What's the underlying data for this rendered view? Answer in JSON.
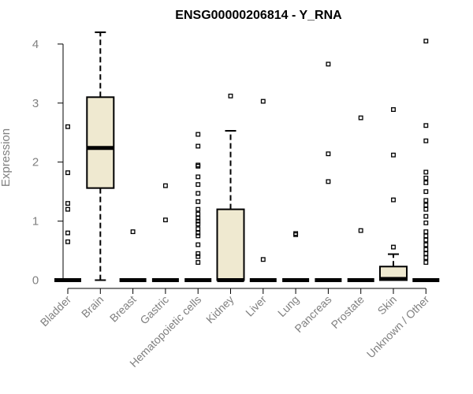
{
  "colors": {
    "box_fill": "#efe9d0",
    "stroke": "#000000",
    "axis_text": "#808080",
    "title": "#000000"
  },
  "chart_data": {
    "type": "box",
    "title": "ENSG00000206814 - Y_RNA",
    "xlabel": "",
    "ylabel": "Expression",
    "ylim": [
      0,
      4.3
    ],
    "yticks": [
      0,
      1,
      2,
      3,
      4
    ],
    "grid": false,
    "categories": [
      "Bladder",
      "Brain",
      "Breast",
      "Gastric",
      "Hematopoietic cells",
      "Kidney",
      "Liver",
      "Lung",
      "Pancreas",
      "Prostate",
      "Skin",
      "Unknown / Other"
    ],
    "boxes": [
      {
        "category": "Bladder",
        "q1": 0,
        "median": 0,
        "q3": 0,
        "whisker_low": 0,
        "whisker_high": 0,
        "outliers": [
          2.6,
          1.82,
          1.3,
          1.2,
          0.8,
          0.65
        ]
      },
      {
        "category": "Brain",
        "q1": 1.56,
        "median": 2.24,
        "q3": 3.1,
        "whisker_low": 0,
        "whisker_high": 4.2,
        "outliers": []
      },
      {
        "category": "Breast",
        "q1": 0,
        "median": 0,
        "q3": 0,
        "whisker_low": 0,
        "whisker_high": 0,
        "outliers": [
          0.82
        ]
      },
      {
        "category": "Gastric",
        "q1": 0,
        "median": 0,
        "q3": 0,
        "whisker_low": 0,
        "whisker_high": 0,
        "outliers": [
          1.6,
          1.02
        ]
      },
      {
        "category": "Hematopoietic cells",
        "q1": 0,
        "median": 0,
        "q3": 0,
        "whisker_low": 0,
        "whisker_high": 0,
        "outliers": [
          2.47,
          2.27,
          1.95,
          1.93,
          1.75,
          1.62,
          1.47,
          1.33,
          1.2,
          1.12,
          1.05,
          1.0,
          0.95,
          0.87,
          0.8,
          0.75,
          0.6,
          0.45,
          0.4,
          0.3
        ]
      },
      {
        "category": "Kidney",
        "q1": 0,
        "median": 0,
        "q3": 1.2,
        "whisker_low": 0,
        "whisker_high": 2.53,
        "outliers": [
          3.12
        ]
      },
      {
        "category": "Liver",
        "q1": 0,
        "median": 0,
        "q3": 0,
        "whisker_low": 0,
        "whisker_high": 0,
        "outliers": [
          3.03,
          0.35
        ]
      },
      {
        "category": "Lung",
        "q1": 0,
        "median": 0,
        "q3": 0,
        "whisker_low": 0,
        "whisker_high": 0,
        "outliers": [
          0.79,
          0.77
        ]
      },
      {
        "category": "Pancreas",
        "q1": 0,
        "median": 0,
        "q3": 0,
        "whisker_low": 0,
        "whisker_high": 0,
        "outliers": [
          3.66,
          2.14,
          1.67
        ]
      },
      {
        "category": "Prostate",
        "q1": 0,
        "median": 0,
        "q3": 0,
        "whisker_low": 0,
        "whisker_high": 0,
        "outliers": [
          2.75,
          0.84
        ]
      },
      {
        "category": "Skin",
        "q1": 0,
        "median": 0.02,
        "q3": 0.23,
        "whisker_low": 0,
        "whisker_high": 0.44,
        "outliers": [
          2.89,
          2.12,
          1.36,
          0.56
        ]
      },
      {
        "category": "Unknown / Other",
        "q1": 0,
        "median": 0,
        "q3": 0,
        "whisker_low": 0,
        "whisker_high": 0,
        "outliers": [
          4.05,
          2.62,
          2.36,
          1.83,
          1.73,
          1.65,
          1.5,
          1.35,
          1.27,
          1.2,
          1.08,
          0.97,
          0.82,
          0.75,
          0.68,
          0.6,
          0.52,
          0.45,
          0.38,
          0.3
        ]
      }
    ]
  }
}
